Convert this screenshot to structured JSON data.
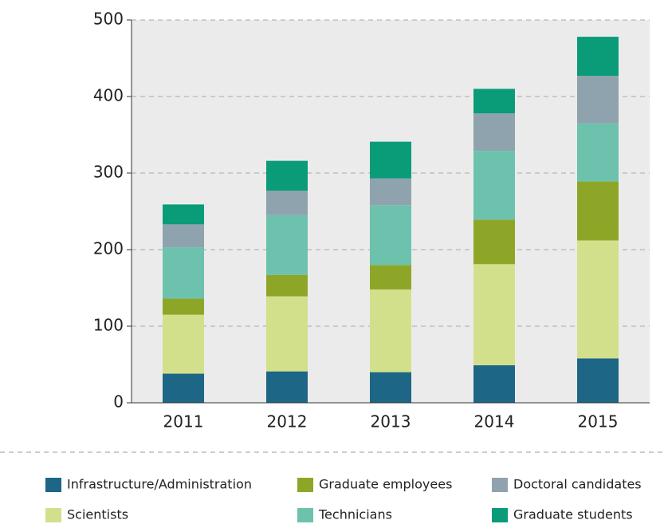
{
  "chart_data": {
    "type": "stacked_bar",
    "categories": [
      "2011",
      "2012",
      "2013",
      "2014",
      "2015"
    ],
    "series": [
      {
        "name": "Infrastructure/Administration",
        "color": "#1d6685",
        "values": [
          38,
          41,
          40,
          49,
          58
        ]
      },
      {
        "name": "Scientists",
        "color": "#d3e08b",
        "values": [
          77,
          98,
          108,
          132,
          154
        ]
      },
      {
        "name": "Graduate employees",
        "color": "#8ea627",
        "values": [
          21,
          28,
          32,
          58,
          77
        ]
      },
      {
        "name": "Technicians",
        "color": "#6cc2ad",
        "values": [
          67,
          78,
          78,
          90,
          76
        ]
      },
      {
        "name": "Doctoral candidates",
        "color": "#8fa3ae",
        "values": [
          30,
          32,
          35,
          49,
          62
        ]
      },
      {
        "name": "Graduate students",
        "color": "#0a9b78",
        "values": [
          26,
          39,
          48,
          32,
          51
        ]
      }
    ],
    "ylim": [
      0,
      500
    ],
    "yticks": [
      0,
      100,
      200,
      300,
      400,
      500
    ],
    "grid": true,
    "legend": "bottom"
  }
}
